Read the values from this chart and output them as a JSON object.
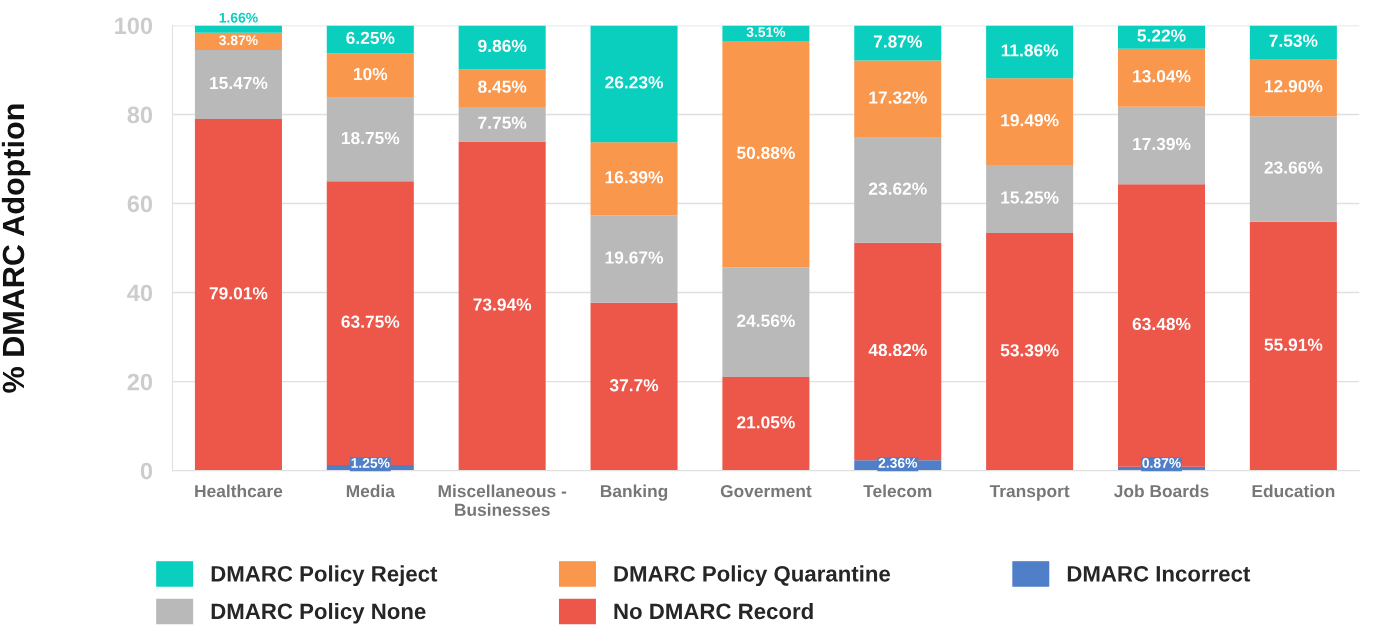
{
  "chart_data": {
    "type": "bar",
    "stacked": true,
    "ylabel": "% DMARC Adoption",
    "categories": [
      "Healthcare",
      "Media",
      "Miscellaneous - Businesses",
      "Banking",
      "Goverment",
      "Telecom",
      "Transport",
      "Job Boards",
      "Education"
    ],
    "series": [
      {
        "name": "DMARC Incorrect",
        "color": "#4f7fc8",
        "values": [
          0,
          1.25,
          0,
          0,
          0,
          2.36,
          0,
          0.87,
          0
        ],
        "value_labels": [
          null,
          "1.25%",
          null,
          null,
          null,
          "2.36%",
          null,
          "0.87%",
          null
        ]
      },
      {
        "name": "No DMARC Record",
        "color": "#ec574a",
        "values": [
          79.01,
          63.75,
          73.94,
          37.7,
          21.05,
          48.82,
          53.39,
          63.48,
          55.91
        ],
        "value_labels": [
          "79.01%",
          "63.75%",
          "73.94%",
          "37.7%",
          "21.05%",
          "48.82%",
          "53.39%",
          "63.48%",
          "55.91%"
        ]
      },
      {
        "name": "DMARC Policy None",
        "color": "#b9b9b9",
        "values": [
          15.47,
          18.75,
          7.75,
          19.67,
          24.56,
          23.62,
          15.25,
          17.39,
          23.66
        ],
        "value_labels": [
          "15.47%",
          "18.75%",
          "7.75%",
          "19.67%",
          "24.56%",
          "23.62%",
          "15.25%",
          "17.39%",
          "23.66%"
        ]
      },
      {
        "name": "DMARC Policy Quarantine",
        "color": "#f9974d",
        "values": [
          3.87,
          10,
          8.45,
          16.39,
          50.88,
          17.32,
          19.49,
          13.04,
          12.9
        ],
        "value_labels": [
          "3.87%",
          "10%",
          "8.45%",
          "16.39%",
          "50.88%",
          "17.32%",
          "19.49%",
          "13.04%",
          "12.90%"
        ]
      },
      {
        "name": "DMARC Policy Reject",
        "color": "#0acfbf",
        "values": [
          1.66,
          6.25,
          9.86,
          26.23,
          3.51,
          7.87,
          11.86,
          5.22,
          7.53
        ],
        "value_labels": [
          "1.66%",
          "6.25%",
          "9.86%",
          "26.23%",
          "3.51%",
          "7.87%",
          "11.86%",
          "5.22%",
          "7.53%"
        ]
      }
    ],
    "ylim": [
      0,
      100
    ],
    "yticks": [
      0,
      20,
      40,
      60,
      80,
      100
    ],
    "grid": "y",
    "legend": "bottom"
  }
}
